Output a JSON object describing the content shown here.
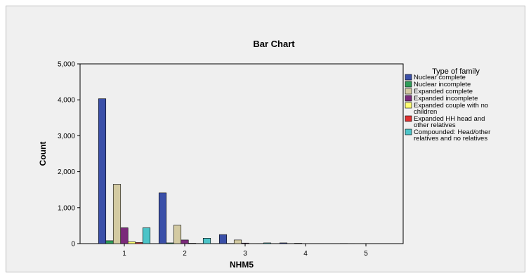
{
  "chart_data": {
    "type": "bar",
    "title": "Bar Chart",
    "xlabel": "NHM5",
    "ylabel": "Count",
    "categories": [
      "1",
      "2",
      "3",
      "4",
      "5"
    ],
    "ylim": [
      0,
      5000
    ],
    "yticks": [
      0,
      1000,
      2000,
      3000,
      4000,
      5000
    ],
    "ytick_labels": [
      "0",
      "1,000",
      "2,000",
      "3,000",
      "4,000",
      "5,000"
    ],
    "grid": false,
    "legend_placement": "right",
    "legend_title": "Type of family",
    "series": [
      {
        "name": "Nuclear complete",
        "color": "#3a4fa8",
        "values": [
          4030,
          1410,
          250,
          20,
          5
        ]
      },
      {
        "name": "Nuclear incomplete",
        "color": "#2e9e58",
        "values": [
          80,
          20,
          5,
          0,
          0
        ]
      },
      {
        "name": "Expanded complete",
        "color": "#d3caa2",
        "values": [
          1650,
          510,
          100,
          10,
          2
        ]
      },
      {
        "name": "Expanded incomplete",
        "color": "#7a2a7a",
        "values": [
          440,
          100,
          15,
          2,
          0
        ]
      },
      {
        "name": "Expanded couple with no children",
        "color": "#ffff70",
        "values": [
          50,
          10,
          2,
          0,
          0
        ]
      },
      {
        "name": "Expanded HH head and other relatives",
        "color": "#e03030",
        "values": [
          30,
          5,
          0,
          0,
          0
        ]
      },
      {
        "name": "Compounded: Head/other relatives and no relatives",
        "color": "#4cc4c8",
        "values": [
          440,
          150,
          20,
          3,
          0
        ]
      }
    ],
    "legend_lines": [
      [
        "Nuclear complete"
      ],
      [
        "Nuclear incomplete"
      ],
      [
        "Expanded complete"
      ],
      [
        "Expanded incomplete"
      ],
      [
        "Expanded couple with no",
        "children"
      ],
      [
        "Expanded HH head and",
        "other relatives"
      ],
      [
        "Compounded: Head/other",
        "relatives and no relatives"
      ]
    ]
  }
}
